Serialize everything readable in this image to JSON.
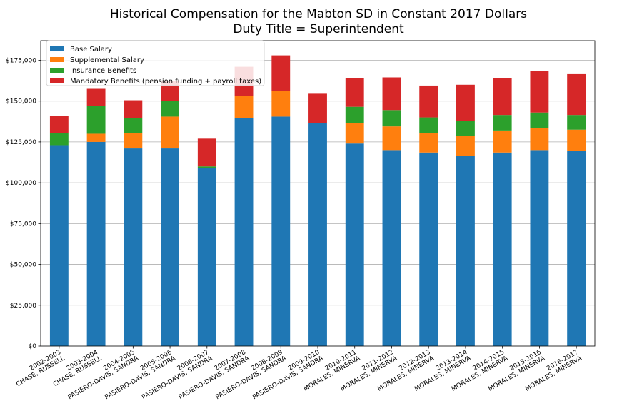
{
  "chart_data": {
    "type": "bar",
    "stacked": true,
    "title": "Historical Compensation for the Mabton SD in Constant 2017 Dollars",
    "subtitle": "Duty Title = Superintendent",
    "xlabel": "",
    "ylabel": "",
    "ylim": [
      0,
      187000
    ],
    "yticks": [
      {
        "value": 0,
        "label": "$0"
      },
      {
        "value": 25000,
        "label": "$25,000"
      },
      {
        "value": 50000,
        "label": "$50,000"
      },
      {
        "value": 75000,
        "label": "$75,000"
      },
      {
        "value": 100000,
        "label": "$100,000"
      },
      {
        "value": 125000,
        "label": "$125,000"
      },
      {
        "value": 150000,
        "label": "$150,000"
      },
      {
        "value": 175000,
        "label": "$175,000"
      }
    ],
    "grid": "horizontal",
    "legend_position": "top-left",
    "categories": [
      [
        "2002-2003",
        "CHASE, RUSSELL"
      ],
      [
        "2003-2004",
        "CHASE, RUSSELL"
      ],
      [
        "2004-2005",
        "PASIERO-DAVIS, SANDRA"
      ],
      [
        "2005-2006",
        "PASIERO-DAVIS, SANDRA"
      ],
      [
        "2006-2007",
        "PASIERO-DAVIS, SANDRA"
      ],
      [
        "2007-2008",
        "PASIERO-DAVIS, SANDRA"
      ],
      [
        "2008-2009",
        "PASIERO-DAVIS, SANDRA"
      ],
      [
        "2009-2010",
        "PASIERO-DAVIS, SANDRA"
      ],
      [
        "2010-2011",
        "MORALES, MINERVA"
      ],
      [
        "2011-2012",
        "MORALES, MINERVA"
      ],
      [
        "2012-2013",
        "MORALES, MINERVA"
      ],
      [
        "2013-2014",
        "MORALES, MINERVA"
      ],
      [
        "2014-2015",
        "MORALES, MINERVA"
      ],
      [
        "2015-2016",
        "MORALES, MINERVA"
      ],
      [
        "2016-2017",
        "MORALES, MINERVA"
      ]
    ],
    "series": [
      {
        "name": "Base Salary",
        "color": "#1f77b4",
        "values": [
          123000,
          125000,
          121000,
          121000,
          109000,
          139500,
          140500,
          136500,
          124000,
          120000,
          118500,
          116500,
          118500,
          120000,
          119500
        ]
      },
      {
        "name": "Supplemental Salary",
        "color": "#ff7f0e",
        "values": [
          0,
          5000,
          9500,
          19500,
          0,
          13500,
          15500,
          0,
          12500,
          14500,
          12000,
          12000,
          13500,
          13500,
          13000
        ]
      },
      {
        "name": "Insurance Benefits",
        "color": "#2ca02c",
        "values": [
          7500,
          17000,
          9000,
          9500,
          1000,
          0,
          0,
          0,
          10000,
          10000,
          9500,
          9500,
          9500,
          9500,
          9000
        ]
      },
      {
        "name": "Mandatory Benefits (pension funding + payroll taxes)",
        "color": "#d62728",
        "values": [
          10500,
          10500,
          11000,
          12500,
          17000,
          18000,
          22000,
          18000,
          17500,
          20000,
          19500,
          22000,
          22500,
          25500,
          25000
        ]
      }
    ]
  }
}
